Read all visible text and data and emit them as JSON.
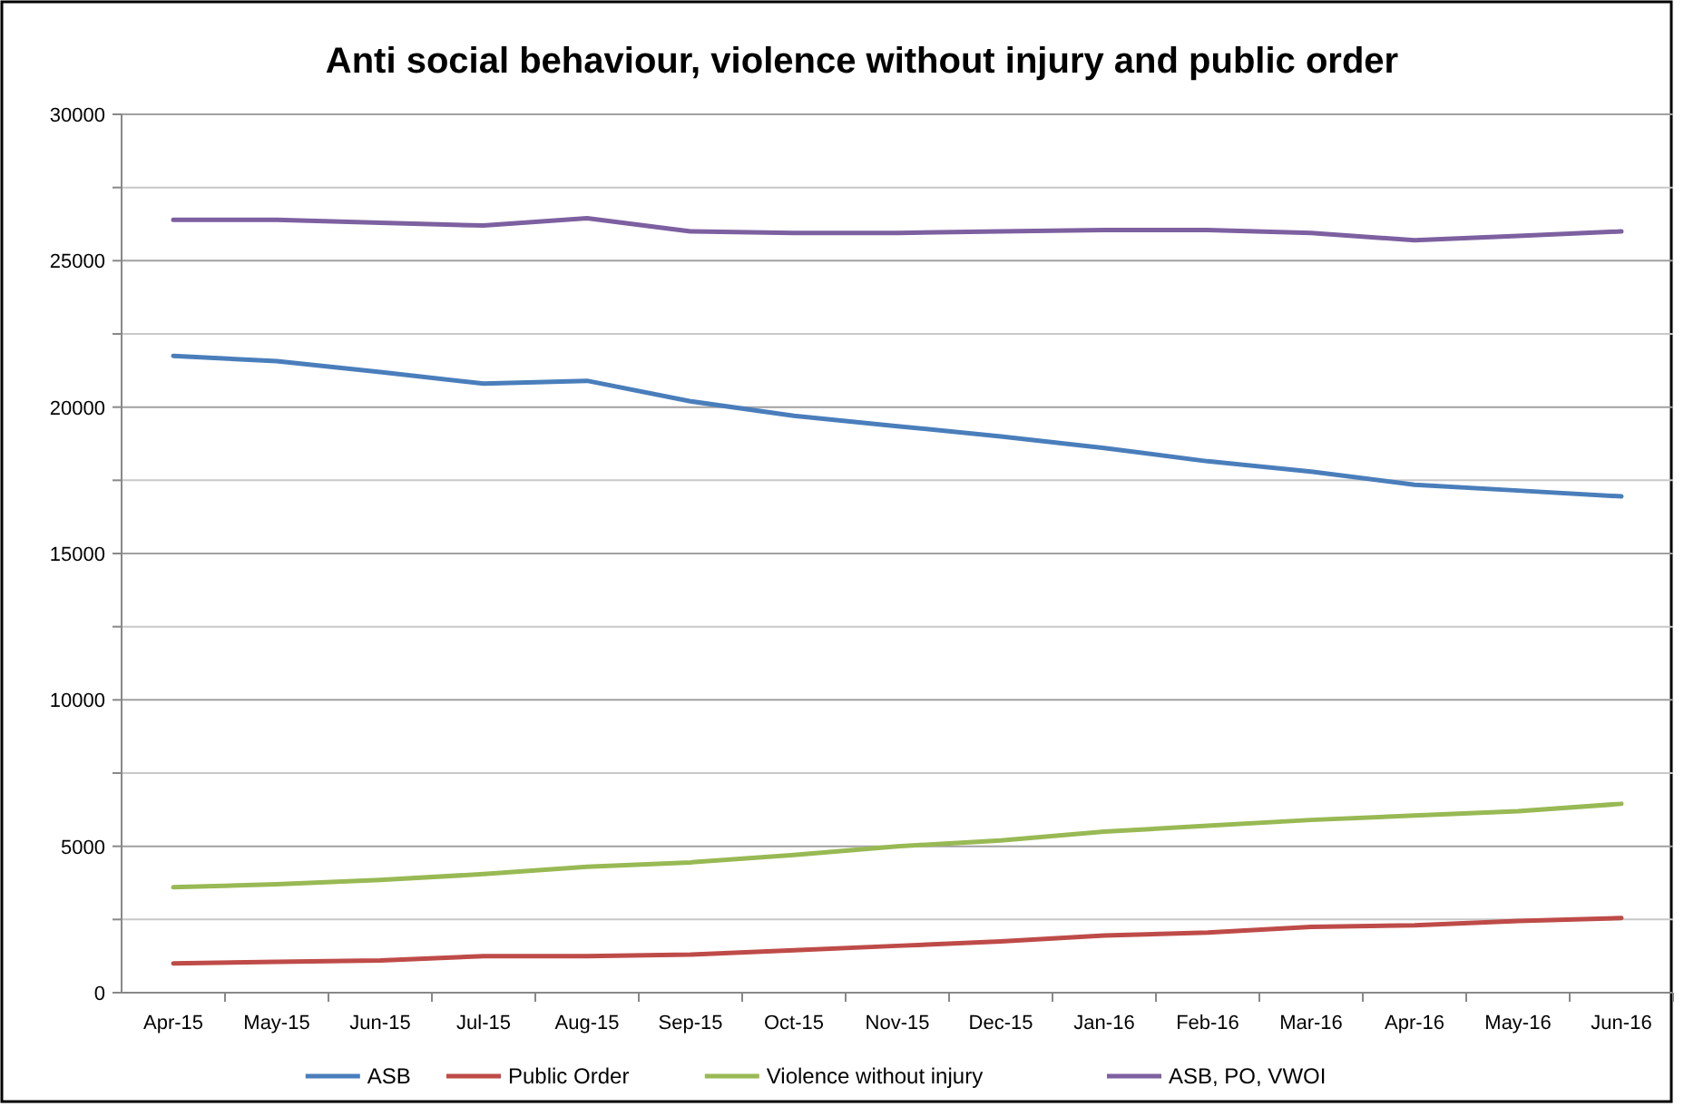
{
  "chart_data": {
    "type": "line",
    "title": "Anti social behaviour, violence without injury and public order",
    "categories": [
      "Apr-15",
      "May-15",
      "Jun-15",
      "Jul-15",
      "Aug-15",
      "Sep-15",
      "Oct-15",
      "Nov-15",
      "Dec-15",
      "Jan-16",
      "Feb-16",
      "Mar-16",
      "Apr-16",
      "May-16",
      "Jun-16"
    ],
    "series": [
      {
        "name": "ASB",
        "color": "#4a7ebb",
        "values": [
          21750,
          21570,
          21200,
          20800,
          20900,
          20200,
          19700,
          19350,
          19000,
          18600,
          18150,
          17800,
          17350,
          17150,
          16950
        ]
      },
      {
        "name": "Public Order",
        "color": "#be4b48",
        "values": [
          1000,
          1050,
          1100,
          1250,
          1250,
          1300,
          1450,
          1600,
          1750,
          1950,
          2050,
          2250,
          2300,
          2450,
          2550
        ]
      },
      {
        "name": "Violence without injury",
        "color": "#98b954",
        "values": [
          3600,
          3700,
          3850,
          4050,
          4300,
          4450,
          4700,
          5000,
          5200,
          5500,
          5700,
          5900,
          6050,
          6200,
          6450
        ]
      },
      {
        "name": "ASB, PO, VWOI",
        "color": "#7d60a0",
        "values": [
          26400,
          26400,
          26300,
          26200,
          26450,
          26000,
          25950,
          25950,
          26000,
          26050,
          26050,
          25950,
          25700,
          25850,
          26000
        ]
      }
    ],
    "ylim": [
      0,
      30000
    ],
    "yticks": [
      0,
      {
        "value": 2500,
        "label": null
      },
      5000,
      {
        "value": 7500,
        "label": null
      },
      10000,
      {
        "value": 12500,
        "label": null
      },
      15000,
      {
        "value": 17500,
        "label": null
      },
      20000,
      {
        "value": 22500,
        "label": null
      },
      25000,
      {
        "value": 27500,
        "label": null
      },
      30000
    ],
    "grid": "y",
    "legend": "bottom",
    "marker": "none",
    "line_style": "solid"
  }
}
